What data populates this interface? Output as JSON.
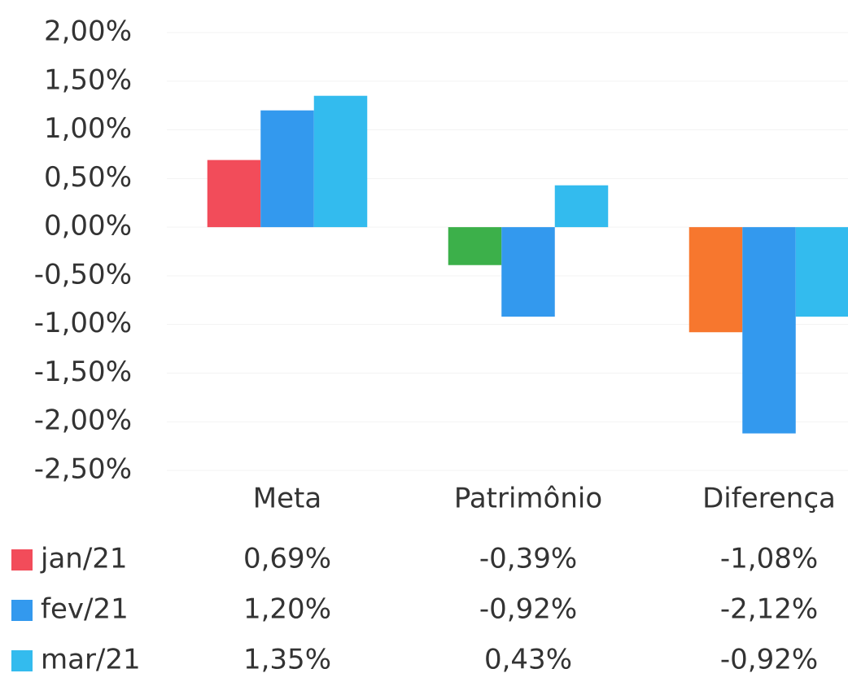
{
  "chart_data": {
    "type": "bar",
    "categories": [
      "Meta",
      "Patrimônio",
      "Diferença"
    ],
    "series": [
      {
        "name": "jan/21",
        "color": "#f24c5a",
        "bar_colors": [
          "#f24c5a",
          "#3cb04a",
          "#f7772e"
        ],
        "values": [
          0.69,
          -0.39,
          -1.08
        ],
        "value_labels": [
          "0,69%",
          "-0,39%",
          "-1,08%"
        ]
      },
      {
        "name": "fev/21",
        "color": "#3399ee",
        "values": [
          1.2,
          -0.92,
          -2.12
        ],
        "value_labels": [
          "1,20%",
          "-0,92%",
          "-2,12%"
        ]
      },
      {
        "name": "mar/21",
        "color": "#33bbee",
        "values": [
          1.35,
          0.43,
          -0.92
        ],
        "value_labels": [
          "1,35%",
          "0,43%",
          "-0,92%"
        ]
      }
    ],
    "ylim": [
      -2.5,
      2.0
    ],
    "yticks": [
      {
        "value": 2.0,
        "label": "2,00%"
      },
      {
        "value": 1.5,
        "label": "1,50%"
      },
      {
        "value": 1.0,
        "label": "1,00%"
      },
      {
        "value": 0.5,
        "label": "0,50%"
      },
      {
        "value": 0.0,
        "label": "0,00%"
      },
      {
        "value": -0.5,
        "label": "-0,50%"
      },
      {
        "value": -1.0,
        "label": "-1,00%"
      },
      {
        "value": -1.5,
        "label": "-1,50%"
      },
      {
        "value": -2.0,
        "label": "-2,00%"
      },
      {
        "value": -2.5,
        "label": "-2,50%"
      }
    ],
    "grid": true
  }
}
